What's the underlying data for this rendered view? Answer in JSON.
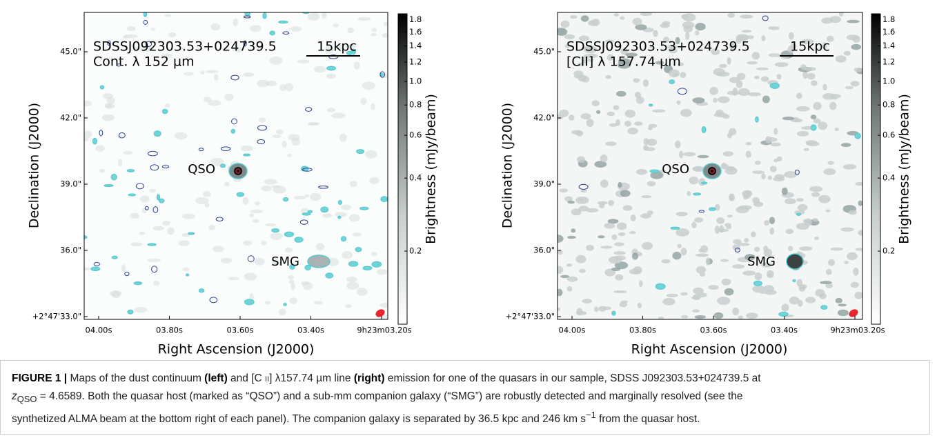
{
  "panels": [
    {
      "target": "SDSSJ092303.53+024739.5",
      "line": "Cont. λ 152 µm",
      "scale_bar": "15kpc",
      "qso": "QSO",
      "smg": "SMG",
      "y_label": "Declination (J2000)",
      "x_label": "Right Ascension (J2000)",
      "y_ticks": [
        "45.0\"",
        "42.0\"",
        "39.0\"",
        "36.0\"",
        "+2°47'33.0\""
      ],
      "x_ticks": [
        "04.00s",
        "03.80s",
        "03.60s",
        "03.40s",
        "9h23m03.20s"
      ],
      "colorbar": {
        "label": "Brightness (mJy/beam)",
        "lim": [
          0.1,
          1.9
        ],
        "log": true,
        "ticks": [
          1.8,
          1.6,
          1.4,
          1.2,
          {
            "value": 1,
            "label": "1.0"
          },
          0.8,
          0.6,
          0.4,
          0.2
        ]
      }
    },
    {
      "target": "SDSSJ092303.53+024739.5",
      "line": "[CII] λ 157.74 µm",
      "scale_bar": "15kpc",
      "qso": "QSO",
      "smg": "SMG",
      "y_label": "Declination (J2000)",
      "x_label": "Right Ascension (J2000)",
      "y_ticks": [
        "45.0\"",
        "42.0\"",
        "39.0\"",
        "36.0\"",
        "+2°47'33.0\""
      ],
      "x_ticks": [
        "04.00s",
        "03.80s",
        "03.60s",
        "03.40s",
        "9h23m03.20s"
      ],
      "colorbar": {
        "label": "Brightness (mJy/beam)",
        "lim": [
          0.1,
          1.9
        ],
        "log": true,
        "ticks": [
          1.8,
          1.6,
          1.4,
          1.2,
          {
            "value": 1,
            "label": "1.0"
          },
          0.8,
          0.6,
          0.4,
          0.2
        ]
      }
    }
  ],
  "caption": [
    "FIGURE 1 |",
    " Maps of the dust continuum ",
    "(left)",
    " and [C ",
    "II",
    "] λ157.74 µm line ",
    "(right)",
    " emission for one of the quasars in our sample, SDSS J092303.53+024739.5 at",
    "z",
    "QSO",
    " = 4.6589. Both the quasar host (marked as “QSO”) and a sub-mm companion galaxy (“SMG”) are robustly detected and marginally resolved (see the",
    "synthetized ALMA beam at the bottom right of each panel). The companion galaxy is separated by 36.5 kpc and 246 km s",
    "−1",
    "  from the quasar host."
  ]
}
